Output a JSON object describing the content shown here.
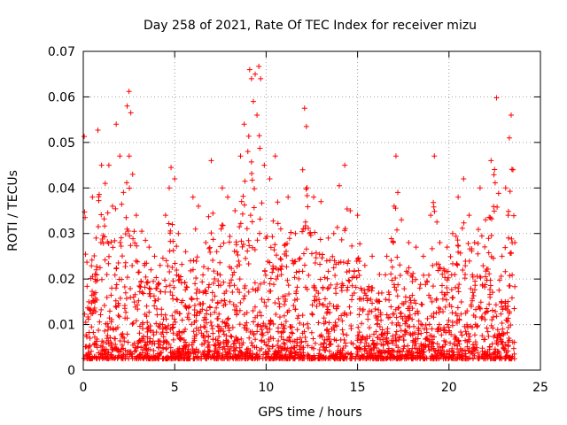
{
  "chart_data": {
    "type": "scatter",
    "title": "Day 258 of 2021, Rate Of TEC Index for receiver mizu",
    "xlabel": "GPS time / hours",
    "ylabel": "ROTI / TECUs",
    "xlim": [
      0,
      25
    ],
    "ylim": [
      0,
      0.07
    ],
    "x_ticks": [
      0,
      5,
      10,
      15,
      20,
      25
    ],
    "x_tick_labels": [
      "0",
      "5",
      "10",
      "15",
      "20",
      "25"
    ],
    "y_ticks": [
      0,
      0.01,
      0.02,
      0.03,
      0.04,
      0.05,
      0.06,
      0.07
    ],
    "y_tick_labels": [
      "0",
      "0.01",
      "0.02",
      "0.03",
      "0.04",
      "0.05",
      "0.06",
      "0.07"
    ],
    "grid": true,
    "marker": "+",
    "marker_color": "#ff0000",
    "series": [
      {
        "name": "ROTI",
        "points": [
          [
            0.05,
            0.0513
          ],
          [
            0.1,
            0.0335
          ],
          [
            0.2,
            0.0237
          ],
          [
            0.3,
            0.015
          ],
          [
            0.5,
            0.038
          ],
          [
            0.7,
            0.029
          ],
          [
            0.8,
            0.0527
          ],
          [
            1.0,
            0.045
          ],
          [
            1.2,
            0.041
          ],
          [
            1.4,
            0.045
          ],
          [
            1.6,
            0.036
          ],
          [
            1.8,
            0.054
          ],
          [
            2.0,
            0.047
          ],
          [
            2.2,
            0.039
          ],
          [
            2.4,
            0.058
          ],
          [
            2.5,
            0.0612
          ],
          [
            2.6,
            0.0565
          ],
          [
            2.7,
            0.043
          ],
          [
            2.9,
            0.034
          ],
          [
            3.2,
            0.0305
          ],
          [
            3.4,
            0.0285
          ],
          [
            3.6,
            0.027
          ],
          [
            3.9,
            0.025
          ],
          [
            4.2,
            0.023
          ],
          [
            4.5,
            0.034
          ],
          [
            4.7,
            0.04
          ],
          [
            4.8,
            0.0445
          ],
          [
            5.0,
            0.042
          ],
          [
            5.2,
            0.03
          ],
          [
            5.6,
            0.026
          ],
          [
            6.0,
            0.038
          ],
          [
            6.3,
            0.036
          ],
          [
            6.7,
            0.028
          ],
          [
            7.0,
            0.046
          ],
          [
            7.3,
            0.026
          ],
          [
            7.6,
            0.04
          ],
          [
            7.9,
            0.038
          ],
          [
            8.3,
            0.035
          ],
          [
            8.6,
            0.047
          ],
          [
            8.8,
            0.054
          ],
          [
            9.0,
            0.048
          ],
          [
            9.1,
            0.066
          ],
          [
            9.2,
            0.064
          ],
          [
            9.3,
            0.059
          ],
          [
            9.4,
            0.065
          ],
          [
            9.5,
            0.056
          ],
          [
            9.6,
            0.0667
          ],
          [
            9.7,
            0.064
          ],
          [
            9.9,
            0.045
          ],
          [
            10.2,
            0.042
          ],
          [
            10.5,
            0.047
          ],
          [
            10.8,
            0.031
          ],
          [
            11.2,
            0.038
          ],
          [
            11.6,
            0.03
          ],
          [
            12.0,
            0.044
          ],
          [
            12.1,
            0.0575
          ],
          [
            12.2,
            0.0535
          ],
          [
            12.6,
            0.038
          ],
          [
            13.0,
            0.037
          ],
          [
            13.4,
            0.029
          ],
          [
            13.7,
            0.03
          ],
          [
            14.0,
            0.0405
          ],
          [
            14.3,
            0.045
          ],
          [
            14.6,
            0.035
          ],
          [
            15.0,
            0.034
          ],
          [
            15.4,
            0.023
          ],
          [
            15.8,
            0.025
          ],
          [
            16.2,
            0.021
          ],
          [
            16.6,
            0.025
          ],
          [
            17.0,
            0.036
          ],
          [
            17.1,
            0.047
          ],
          [
            17.2,
            0.039
          ],
          [
            17.4,
            0.033
          ],
          [
            17.8,
            0.028
          ],
          [
            18.2,
            0.027
          ],
          [
            18.6,
            0.025
          ],
          [
            19.0,
            0.034
          ],
          [
            19.2,
            0.047
          ],
          [
            19.5,
            0.028
          ],
          [
            19.9,
            0.027
          ],
          [
            20.2,
            0.03
          ],
          [
            20.5,
            0.038
          ],
          [
            20.8,
            0.042
          ],
          [
            21.1,
            0.034
          ],
          [
            21.4,
            0.028
          ],
          [
            21.7,
            0.04
          ],
          [
            22.0,
            0.033
          ],
          [
            22.3,
            0.046
          ],
          [
            22.6,
            0.0598
          ],
          [
            22.9,
            0.025
          ],
          [
            23.1,
            0.04
          ],
          [
            23.3,
            0.051
          ],
          [
            23.4,
            0.056
          ],
          [
            23.5,
            0.044
          ],
          [
            23.6,
            0.028
          ]
        ]
      }
    ]
  }
}
